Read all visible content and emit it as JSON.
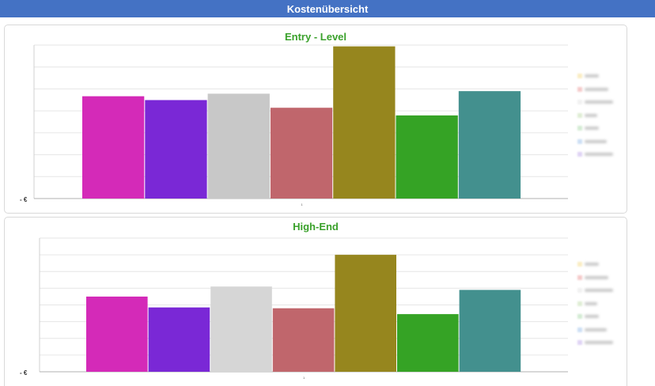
{
  "header": {
    "title": "Kostenübersicht"
  },
  "legend_colors": [
    "#f5d77a",
    "#e88a8a",
    "#e0e0e0",
    "#b8d8a0",
    "#9fd49f",
    "#8fb8e8",
    "#b89ee8"
  ],
  "chart_data": [
    {
      "type": "bar",
      "title": "Entry - Level",
      "categories": [
        "1"
      ],
      "ylim": [
        0,
        6
      ],
      "y_tick_label": "-   €",
      "grid": true,
      "legend_position": "right",
      "series": [
        {
          "values": [
            4.0
          ],
          "color": "#d42ab8"
        },
        {
          "values": [
            3.85
          ],
          "color": "#7a28d6"
        },
        {
          "values": [
            4.1
          ],
          "color": "#c8c8c8"
        },
        {
          "values": [
            3.55
          ],
          "color": "#c0666c"
        },
        {
          "values": [
            5.95
          ],
          "color": "#96861e"
        },
        {
          "values": [
            3.25
          ],
          "color": "#35a325"
        },
        {
          "values": [
            4.2
          ],
          "color": "#43908e"
        }
      ]
    },
    {
      "type": "bar",
      "title": "High-End",
      "categories": [
        "1"
      ],
      "ylim": [
        0,
        8
      ],
      "y_tick_label": "-   €",
      "grid": true,
      "legend_position": "right",
      "series": [
        {
          "values": [
            4.5
          ],
          "color": "#d42ab8"
        },
        {
          "values": [
            3.85
          ],
          "color": "#7a28d6"
        },
        {
          "values": [
            5.1
          ],
          "color": "#d6d6d6"
        },
        {
          "values": [
            3.8
          ],
          "color": "#c0666c"
        },
        {
          "values": [
            7.0
          ],
          "color": "#96861e"
        },
        {
          "values": [
            3.45
          ],
          "color": "#35a325"
        },
        {
          "values": [
            4.9
          ],
          "color": "#43908e"
        }
      ]
    }
  ]
}
